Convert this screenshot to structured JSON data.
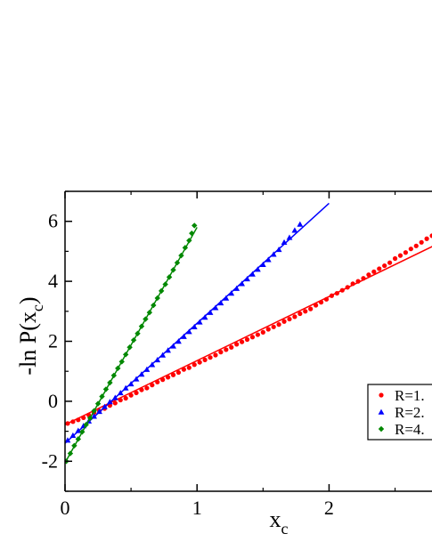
{
  "chart_data": {
    "type": "scatter",
    "xlabel": {
      "main": "x",
      "sub": "c"
    },
    "ylabel": {
      "main": "-ln P(x",
      "sub": "c",
      "close": ")"
    },
    "xlim": [
      0,
      2.8
    ],
    "ylim": [
      -3,
      7
    ],
    "x_ticks": [
      0,
      1,
      2
    ],
    "x_tick_labels": [
      "0",
      "1",
      "2"
    ],
    "y_ticks": [
      -2,
      0,
      2,
      4,
      6
    ],
    "y_tick_labels": [
      "-2",
      "0",
      "2",
      "4",
      "6"
    ],
    "grid": false,
    "legend_position": "right",
    "series": [
      {
        "name": "R=1.",
        "color": "#ff0000",
        "marker": "circle",
        "fit": {
          "x0": 0.0,
          "y0": -0.78,
          "x1": 2.8,
          "y1": 5.2
        },
        "points": [
          [
            0.02,
            -0.74
          ],
          [
            0.06,
            -0.68
          ],
          [
            0.1,
            -0.62
          ],
          [
            0.14,
            -0.55
          ],
          [
            0.18,
            -0.46
          ],
          [
            0.22,
            -0.38
          ],
          [
            0.26,
            -0.32
          ],
          [
            0.3,
            -0.24
          ],
          [
            0.34,
            -0.14
          ],
          [
            0.38,
            -0.06
          ],
          [
            0.42,
            0.04
          ],
          [
            0.46,
            0.1
          ],
          [
            0.5,
            0.2
          ],
          [
            0.54,
            0.28
          ],
          [
            0.58,
            0.38
          ],
          [
            0.62,
            0.44
          ],
          [
            0.66,
            0.54
          ],
          [
            0.7,
            0.64
          ],
          [
            0.74,
            0.72
          ],
          [
            0.78,
            0.8
          ],
          [
            0.82,
            0.88
          ],
          [
            0.86,
            0.96
          ],
          [
            0.9,
            1.06
          ],
          [
            0.94,
            1.12
          ],
          [
            0.98,
            1.22
          ],
          [
            1.02,
            1.3
          ],
          [
            1.06,
            1.38
          ],
          [
            1.1,
            1.46
          ],
          [
            1.14,
            1.54
          ],
          [
            1.18,
            1.64
          ],
          [
            1.22,
            1.72
          ],
          [
            1.26,
            1.8
          ],
          [
            1.3,
            1.9
          ],
          [
            1.34,
            1.98
          ],
          [
            1.38,
            2.06
          ],
          [
            1.42,
            2.14
          ],
          [
            1.46,
            2.22
          ],
          [
            1.5,
            2.3
          ],
          [
            1.54,
            2.4
          ],
          [
            1.58,
            2.48
          ],
          [
            1.62,
            2.56
          ],
          [
            1.66,
            2.66
          ],
          [
            1.7,
            2.74
          ],
          [
            1.74,
            2.82
          ],
          [
            1.78,
            2.92
          ],
          [
            1.82,
            3.0
          ],
          [
            1.86,
            3.08
          ],
          [
            1.9,
            3.2
          ],
          [
            1.94,
            3.3
          ],
          [
            1.98,
            3.4
          ],
          [
            2.02,
            3.52
          ],
          [
            2.06,
            3.6
          ],
          [
            2.1,
            3.7
          ],
          [
            2.14,
            3.8
          ],
          [
            2.18,
            3.92
          ],
          [
            2.22,
            4.0
          ],
          [
            2.26,
            4.1
          ],
          [
            2.3,
            4.22
          ],
          [
            2.34,
            4.32
          ],
          [
            2.38,
            4.42
          ],
          [
            2.42,
            4.52
          ],
          [
            2.46,
            4.62
          ],
          [
            2.5,
            4.76
          ],
          [
            2.54,
            4.86
          ],
          [
            2.58,
            4.96
          ],
          [
            2.62,
            5.08
          ],
          [
            2.66,
            5.18
          ],
          [
            2.7,
            5.3
          ],
          [
            2.74,
            5.42
          ],
          [
            2.78,
            5.52
          ]
        ]
      },
      {
        "name": "R=2.",
        "color": "#0000ff",
        "marker": "triangle",
        "fit": {
          "x0": 0.0,
          "y0": -1.4,
          "x1": 2.0,
          "y1": 6.6
        },
        "points": [
          [
            0.02,
            -1.3
          ],
          [
            0.06,
            -1.14
          ],
          [
            0.1,
            -0.98
          ],
          [
            0.14,
            -0.82
          ],
          [
            0.18,
            -0.66
          ],
          [
            0.22,
            -0.5
          ],
          [
            0.26,
            -0.34
          ],
          [
            0.3,
            -0.18
          ],
          [
            0.34,
            -0.02
          ],
          [
            0.38,
            0.12
          ],
          [
            0.42,
            0.28
          ],
          [
            0.46,
            0.44
          ],
          [
            0.5,
            0.58
          ],
          [
            0.54,
            0.74
          ],
          [
            0.58,
            0.9
          ],
          [
            0.62,
            1.06
          ],
          [
            0.66,
            1.22
          ],
          [
            0.7,
            1.38
          ],
          [
            0.74,
            1.54
          ],
          [
            0.78,
            1.7
          ],
          [
            0.82,
            1.84
          ],
          [
            0.86,
            2.0
          ],
          [
            0.9,
            2.16
          ],
          [
            0.94,
            2.32
          ],
          [
            0.98,
            2.48
          ],
          [
            1.02,
            2.64
          ],
          [
            1.06,
            2.8
          ],
          [
            1.1,
            2.96
          ],
          [
            1.14,
            3.12
          ],
          [
            1.18,
            3.28
          ],
          [
            1.22,
            3.44
          ],
          [
            1.26,
            3.6
          ],
          [
            1.3,
            3.76
          ],
          [
            1.34,
            3.92
          ],
          [
            1.38,
            4.08
          ],
          [
            1.42,
            4.24
          ],
          [
            1.46,
            4.4
          ],
          [
            1.5,
            4.56
          ],
          [
            1.54,
            4.72
          ],
          [
            1.58,
            4.9
          ],
          [
            1.62,
            5.06
          ],
          [
            1.66,
            5.3
          ],
          [
            1.7,
            5.46
          ],
          [
            1.74,
            5.7
          ],
          [
            1.78,
            5.9
          ]
        ]
      },
      {
        "name": "R=4.",
        "color": "#008800",
        "marker": "diamond",
        "fit": {
          "x0": 0.0,
          "y0": -2.05,
          "x1": 1.0,
          "y1": 5.8
        },
        "points": [
          [
            0.01,
            -2.0
          ],
          [
            0.04,
            -1.74
          ],
          [
            0.07,
            -1.48
          ],
          [
            0.1,
            -1.26
          ],
          [
            0.13,
            -1.02
          ],
          [
            0.16,
            -0.78
          ],
          [
            0.19,
            -0.56
          ],
          [
            0.22,
            -0.32
          ],
          [
            0.25,
            -0.08
          ],
          [
            0.28,
            0.16
          ],
          [
            0.31,
            0.4
          ],
          [
            0.34,
            0.62
          ],
          [
            0.37,
            0.86
          ],
          [
            0.4,
            1.1
          ],
          [
            0.43,
            1.32
          ],
          [
            0.46,
            1.56
          ],
          [
            0.49,
            1.8
          ],
          [
            0.52,
            2.04
          ],
          [
            0.55,
            2.26
          ],
          [
            0.58,
            2.5
          ],
          [
            0.61,
            2.74
          ],
          [
            0.64,
            2.96
          ],
          [
            0.67,
            3.2
          ],
          [
            0.7,
            3.44
          ],
          [
            0.73,
            3.68
          ],
          [
            0.76,
            3.9
          ],
          [
            0.79,
            4.14
          ],
          [
            0.82,
            4.38
          ],
          [
            0.85,
            4.62
          ],
          [
            0.88,
            4.86
          ],
          [
            0.91,
            5.12
          ],
          [
            0.94,
            5.36
          ],
          [
            0.96,
            5.6
          ],
          [
            0.98,
            5.86
          ]
        ]
      }
    ]
  }
}
